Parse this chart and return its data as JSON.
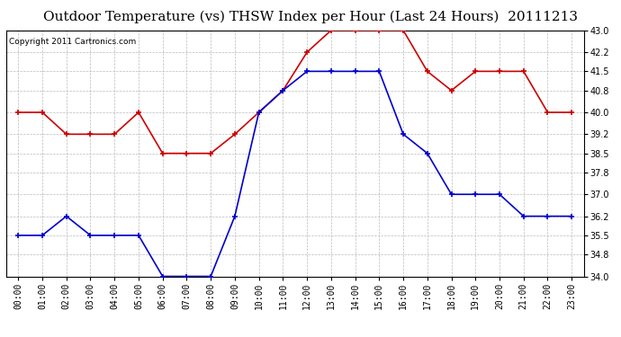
{
  "title": "Outdoor Temperature (vs) THSW Index per Hour (Last 24 Hours)  20111213",
  "copyright": "Copyright 2011 Cartronics.com",
  "hours": [
    "00:00",
    "01:00",
    "02:00",
    "03:00",
    "04:00",
    "05:00",
    "06:00",
    "07:00",
    "08:00",
    "09:00",
    "10:00",
    "11:00",
    "12:00",
    "13:00",
    "14:00",
    "15:00",
    "16:00",
    "17:00",
    "18:00",
    "19:00",
    "20:00",
    "21:00",
    "22:00",
    "23:00"
  ],
  "red_data": [
    40.0,
    40.0,
    39.2,
    39.2,
    39.2,
    40.0,
    38.5,
    38.5,
    38.5,
    39.2,
    40.0,
    40.8,
    42.2,
    43.0,
    43.0,
    43.0,
    43.0,
    41.5,
    40.8,
    41.5,
    41.5,
    41.5,
    40.0,
    40.0
  ],
  "blue_data": [
    35.5,
    35.5,
    36.2,
    35.5,
    35.5,
    35.5,
    34.0,
    34.0,
    34.0,
    36.2,
    40.0,
    40.8,
    41.5,
    41.5,
    41.5,
    41.5,
    39.2,
    38.5,
    37.0,
    37.0,
    37.0,
    36.2,
    36.2,
    36.2
  ],
  "ylim": [
    34.0,
    43.0
  ],
  "yticks": [
    34.0,
    34.8,
    35.5,
    36.2,
    37.0,
    37.8,
    38.5,
    39.2,
    40.0,
    40.8,
    41.5,
    42.2,
    43.0
  ],
  "red_color": "#cc0000",
  "blue_color": "#0000cc",
  "bg_color": "#ffffff",
  "grid_color": "#bbbbbb",
  "title_fontsize": 11,
  "copyright_fontsize": 6.5,
  "tick_fontsize": 7
}
